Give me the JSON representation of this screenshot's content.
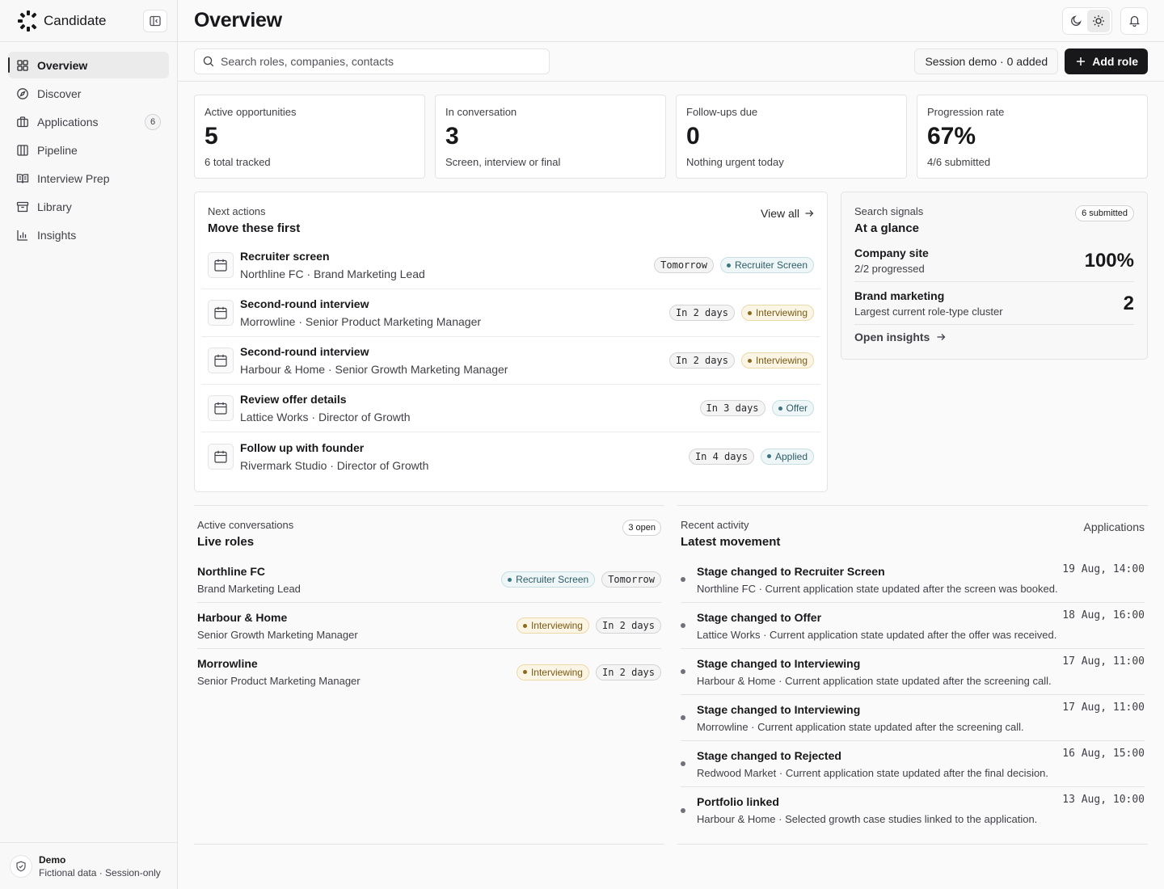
{
  "brand": {
    "name": "Candidate"
  },
  "sidebar": {
    "items": [
      {
        "label": "Overview",
        "icon": "grid-icon",
        "active": true
      },
      {
        "label": "Discover",
        "icon": "compass-icon"
      },
      {
        "label": "Applications",
        "icon": "briefcase-icon",
        "badge": "6"
      },
      {
        "label": "Pipeline",
        "icon": "columns-icon"
      },
      {
        "label": "Interview Prep",
        "icon": "book-icon"
      },
      {
        "label": "Library",
        "icon": "archive-icon"
      },
      {
        "label": "Insights",
        "icon": "bar-chart-icon"
      }
    ],
    "footer": {
      "title": "Demo",
      "subtitle": "Fictional data · Session-only"
    }
  },
  "header": {
    "title": "Overview"
  },
  "toolbar": {
    "search_placeholder": "Search roles, companies, contacts",
    "session_label": "Session demo · 0 added",
    "add_label": "Add role"
  },
  "stats": [
    {
      "label": "Active opportunities",
      "value": "5",
      "sub": "6 total tracked"
    },
    {
      "label": "In conversation",
      "value": "3",
      "sub": "Screen, interview or final"
    },
    {
      "label": "Follow-ups due",
      "value": "0",
      "sub": "Nothing urgent today"
    },
    {
      "label": "Progression rate",
      "value": "67%",
      "sub": "4/6 submitted"
    }
  ],
  "next_actions": {
    "kicker": "Next actions",
    "title": "Move these first",
    "view_all": "View all",
    "items": [
      {
        "title": "Recruiter screen",
        "sub": "Northline FC · Brand Marketing Lead",
        "due": "Tomorrow",
        "stage": "Recruiter Screen",
        "tone": "teal"
      },
      {
        "title": "Second-round interview",
        "sub": "Morrowline · Senior Product Marketing Manager",
        "due": "In 2 days",
        "stage": "Interviewing",
        "tone": "amber"
      },
      {
        "title": "Second-round interview",
        "sub": "Harbour & Home · Senior Growth Marketing Manager",
        "due": "In 2 days",
        "stage": "Interviewing",
        "tone": "amber"
      },
      {
        "title": "Review offer details",
        "sub": "Lattice Works · Director of Growth",
        "due": "In 3 days",
        "stage": "Offer",
        "tone": "teal"
      },
      {
        "title": "Follow up with founder",
        "sub": "Rivermark Studio · Director of Growth",
        "due": "In 4 days",
        "stage": "Applied",
        "tone": "teal"
      }
    ]
  },
  "signals": {
    "kicker": "Search signals",
    "title": "At a glance",
    "badge": "6 submitted",
    "rows": [
      {
        "name": "Company site",
        "sub": "2/2 progressed",
        "value": "100%"
      },
      {
        "name": "Brand marketing",
        "sub": "Largest current role-type cluster",
        "value": "2"
      }
    ],
    "link": "Open insights"
  },
  "conversations": {
    "kicker": "Active conversations",
    "title": "Live roles",
    "badge": "3 open",
    "items": [
      {
        "company": "Northline FC",
        "role": "Brand Marketing Lead",
        "stage": "Recruiter Screen",
        "tone": "teal",
        "due": "Tomorrow"
      },
      {
        "company": "Harbour & Home",
        "role": "Senior Growth Marketing Manager",
        "stage": "Interviewing",
        "tone": "amber",
        "due": "In 2 days"
      },
      {
        "company": "Morrowline",
        "role": "Senior Product Marketing Manager",
        "stage": "Interviewing",
        "tone": "amber",
        "due": "In 2 days"
      }
    ]
  },
  "activity": {
    "kicker": "Recent activity",
    "title": "Latest movement",
    "link": "Applications",
    "items": [
      {
        "title": "Stage changed to Recruiter Screen",
        "sub": "Northline FC · Current application state updated after the screen was booked.",
        "time": "19 Aug, 14:00"
      },
      {
        "title": "Stage changed to Offer",
        "sub": "Lattice Works · Current application state updated after the offer was received.",
        "time": "18 Aug, 16:00"
      },
      {
        "title": "Stage changed to Interviewing",
        "sub": "Harbour & Home · Current application state updated after the screening call.",
        "time": "17 Aug, 11:00"
      },
      {
        "title": "Stage changed to Interviewing",
        "sub": "Morrowline · Current application state updated after the screening call.",
        "time": "17 Aug, 11:00"
      },
      {
        "title": "Stage changed to Rejected",
        "sub": "Redwood Market · Current application state updated after the final decision.",
        "time": "16 Aug, 15:00"
      },
      {
        "title": "Portfolio linked",
        "sub": "Harbour & Home · Selected growth case studies linked to the application.",
        "time": "13 Aug, 10:00"
      }
    ]
  }
}
